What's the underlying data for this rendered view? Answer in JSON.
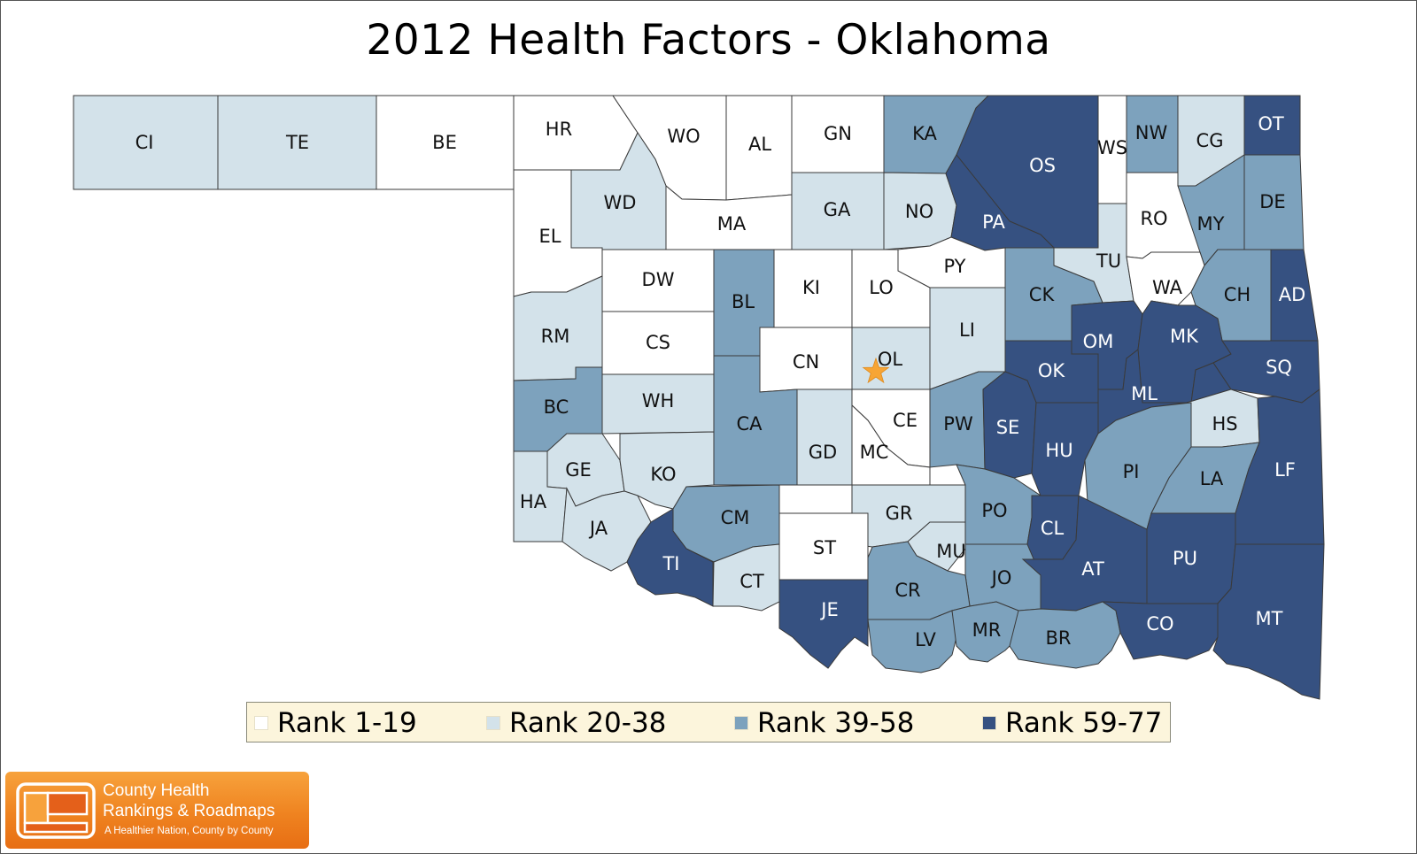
{
  "title": "2012 Health Factors - Oklahoma",
  "colors": {
    "rank_1_19": "#ffffff",
    "rank_20_38": "#d3e2ea",
    "rank_39_58": "#7da2bd",
    "rank_59_77": "#365181",
    "star": "#f7a535"
  },
  "legend": [
    {
      "label": "Rank 1-19",
      "color": "#ffffff"
    },
    {
      "label": "Rank 20-38",
      "color": "#d3e2ea"
    },
    {
      "label": "Rank 39-58",
      "color": "#7da2bd"
    },
    {
      "label": "Rank 59-77",
      "color": "#365181"
    }
  ],
  "capital_marker": "star-icon",
  "counties": [
    {
      "abbr": "CI",
      "rank_group": "Rank 20-38"
    },
    {
      "abbr": "TE",
      "rank_group": "Rank 20-38"
    },
    {
      "abbr": "BE",
      "rank_group": "Rank 1-19"
    },
    {
      "abbr": "HR",
      "rank_group": "Rank 1-19"
    },
    {
      "abbr": "WO",
      "rank_group": "Rank 1-19"
    },
    {
      "abbr": "AL",
      "rank_group": "Rank 1-19"
    },
    {
      "abbr": "GN",
      "rank_group": "Rank 1-19"
    },
    {
      "abbr": "KA",
      "rank_group": "Rank 39-58"
    },
    {
      "abbr": "OS",
      "rank_group": "Rank 59-77"
    },
    {
      "abbr": "WS",
      "rank_group": "Rank 1-19"
    },
    {
      "abbr": "NW",
      "rank_group": "Rank 39-58"
    },
    {
      "abbr": "CG",
      "rank_group": "Rank 20-38"
    },
    {
      "abbr": "OT",
      "rank_group": "Rank 59-77"
    },
    {
      "abbr": "EL",
      "rank_group": "Rank 1-19"
    },
    {
      "abbr": "WD",
      "rank_group": "Rank 20-38"
    },
    {
      "abbr": "MA",
      "rank_group": "Rank 1-19"
    },
    {
      "abbr": "GA",
      "rank_group": "Rank 20-38"
    },
    {
      "abbr": "NO",
      "rank_group": "Rank 20-38"
    },
    {
      "abbr": "PA",
      "rank_group": "Rank 59-77"
    },
    {
      "abbr": "RO",
      "rank_group": "Rank 1-19"
    },
    {
      "abbr": "MY",
      "rank_group": "Rank 39-58"
    },
    {
      "abbr": "DE",
      "rank_group": "Rank 39-58"
    },
    {
      "abbr": "DW",
      "rank_group": "Rank 1-19"
    },
    {
      "abbr": "BL",
      "rank_group": "Rank 39-58"
    },
    {
      "abbr": "KI",
      "rank_group": "Rank 1-19"
    },
    {
      "abbr": "LO",
      "rank_group": "Rank 1-19"
    },
    {
      "abbr": "PY",
      "rank_group": "Rank 1-19"
    },
    {
      "abbr": "TU",
      "rank_group": "Rank 20-38"
    },
    {
      "abbr": "CK",
      "rank_group": "Rank 39-58"
    },
    {
      "abbr": "WA",
      "rank_group": "Rank 1-19"
    },
    {
      "abbr": "CH",
      "rank_group": "Rank 39-58"
    },
    {
      "abbr": "AD",
      "rank_group": "Rank 59-77"
    },
    {
      "abbr": "RM",
      "rank_group": "Rank 20-38"
    },
    {
      "abbr": "CS",
      "rank_group": "Rank 1-19"
    },
    {
      "abbr": "CN",
      "rank_group": "Rank 1-19"
    },
    {
      "abbr": "OL",
      "rank_group": "Rank 20-38"
    },
    {
      "abbr": "LI",
      "rank_group": "Rank 20-38"
    },
    {
      "abbr": "OM",
      "rank_group": "Rank 59-77"
    },
    {
      "abbr": "MK",
      "rank_group": "Rank 59-77"
    },
    {
      "abbr": "OK",
      "rank_group": "Rank 59-77"
    },
    {
      "abbr": "SQ",
      "rank_group": "Rank 59-77"
    },
    {
      "abbr": "BC",
      "rank_group": "Rank 39-58"
    },
    {
      "abbr": "WH",
      "rank_group": "Rank 20-38"
    },
    {
      "abbr": "CA",
      "rank_group": "Rank 39-58"
    },
    {
      "abbr": "CE",
      "rank_group": "Rank 1-19"
    },
    {
      "abbr": "PW",
      "rank_group": "Rank 39-58"
    },
    {
      "abbr": "SE",
      "rank_group": "Rank 59-77"
    },
    {
      "abbr": "ML",
      "rank_group": "Rank 59-77"
    },
    {
      "abbr": "HS",
      "rank_group": "Rank 20-38"
    },
    {
      "abbr": "GE",
      "rank_group": "Rank 20-38"
    },
    {
      "abbr": "KO",
      "rank_group": "Rank 20-38"
    },
    {
      "abbr": "GD",
      "rank_group": "Rank 20-38"
    },
    {
      "abbr": "MC",
      "rank_group": "Rank 1-19"
    },
    {
      "abbr": "HU",
      "rank_group": "Rank 59-77"
    },
    {
      "abbr": "PI",
      "rank_group": "Rank 39-58"
    },
    {
      "abbr": "LA",
      "rank_group": "Rank 39-58"
    },
    {
      "abbr": "LF",
      "rank_group": "Rank 59-77"
    },
    {
      "abbr": "HA",
      "rank_group": "Rank 20-38"
    },
    {
      "abbr": "JA",
      "rank_group": "Rank 20-38"
    },
    {
      "abbr": "CM",
      "rank_group": "Rank 39-58"
    },
    {
      "abbr": "GR",
      "rank_group": "Rank 20-38"
    },
    {
      "abbr": "PO",
      "rank_group": "Rank 39-58"
    },
    {
      "abbr": "CL",
      "rank_group": "Rank 59-77"
    },
    {
      "abbr": "TI",
      "rank_group": "Rank 59-77"
    },
    {
      "abbr": "CT",
      "rank_group": "Rank 20-38"
    },
    {
      "abbr": "ST",
      "rank_group": "Rank 1-19"
    },
    {
      "abbr": "MU",
      "rank_group": "Rank 20-38"
    },
    {
      "abbr": "JO",
      "rank_group": "Rank 39-58"
    },
    {
      "abbr": "AT",
      "rank_group": "Rank 59-77"
    },
    {
      "abbr": "PU",
      "rank_group": "Rank 59-77"
    },
    {
      "abbr": "JE",
      "rank_group": "Rank 59-77"
    },
    {
      "abbr": "CR",
      "rank_group": "Rank 39-58"
    },
    {
      "abbr": "LV",
      "rank_group": "Rank 39-58"
    },
    {
      "abbr": "MR",
      "rank_group": "Rank 39-58"
    },
    {
      "abbr": "BR",
      "rank_group": "Rank 39-58"
    },
    {
      "abbr": "CO",
      "rank_group": "Rank 59-77"
    },
    {
      "abbr": "MT",
      "rank_group": "Rank 59-77"
    }
  ],
  "logo": {
    "line1": "County Health",
    "line2": "Rankings & Roadmaps",
    "tagline": "A Healthier Nation, County by County"
  }
}
